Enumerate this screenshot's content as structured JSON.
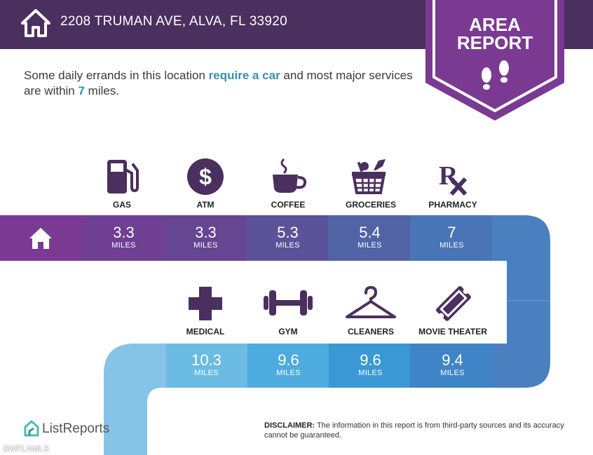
{
  "header": {
    "address": "2208 TRUMAN AVE, ALVA, FL 33920"
  },
  "badge": {
    "line1": "AREA",
    "line2": "REPORT"
  },
  "intro": {
    "part1": "Some daily errands in this location ",
    "highlight1": "require a car",
    "part2": " and most major services are within ",
    "highlight2": "7",
    "part3": " miles."
  },
  "row1": [
    {
      "label": "GAS",
      "value": "3.3",
      "unit": "MILES"
    },
    {
      "label": "ATM",
      "value": "3.3",
      "unit": "MILES"
    },
    {
      "label": "COFFEE",
      "value": "5.3",
      "unit": "MILES"
    },
    {
      "label": "GROCERIES",
      "value": "5.4",
      "unit": "MILES"
    },
    {
      "label": "PHARMACY",
      "value": "7",
      "unit": "MILES"
    }
  ],
  "row2": [
    {
      "label": "MEDICAL",
      "value": "10.3",
      "unit": "MILES"
    },
    {
      "label": "GYM",
      "value": "9.6",
      "unit": "MILES"
    },
    {
      "label": "CLEANERS",
      "value": "9.6",
      "unit": "MILES"
    },
    {
      "label": "MOVIE THEATER",
      "value": "9.4",
      "unit": "MILES"
    }
  ],
  "footer": {
    "logo": "ListReports",
    "disclaimer_label": "DISCLAIMER:",
    "disclaimer_text": " The information in this report is from third-party sources and its accuracy cannot be guaranteed.",
    "watermark": "SWFLAMLS"
  }
}
